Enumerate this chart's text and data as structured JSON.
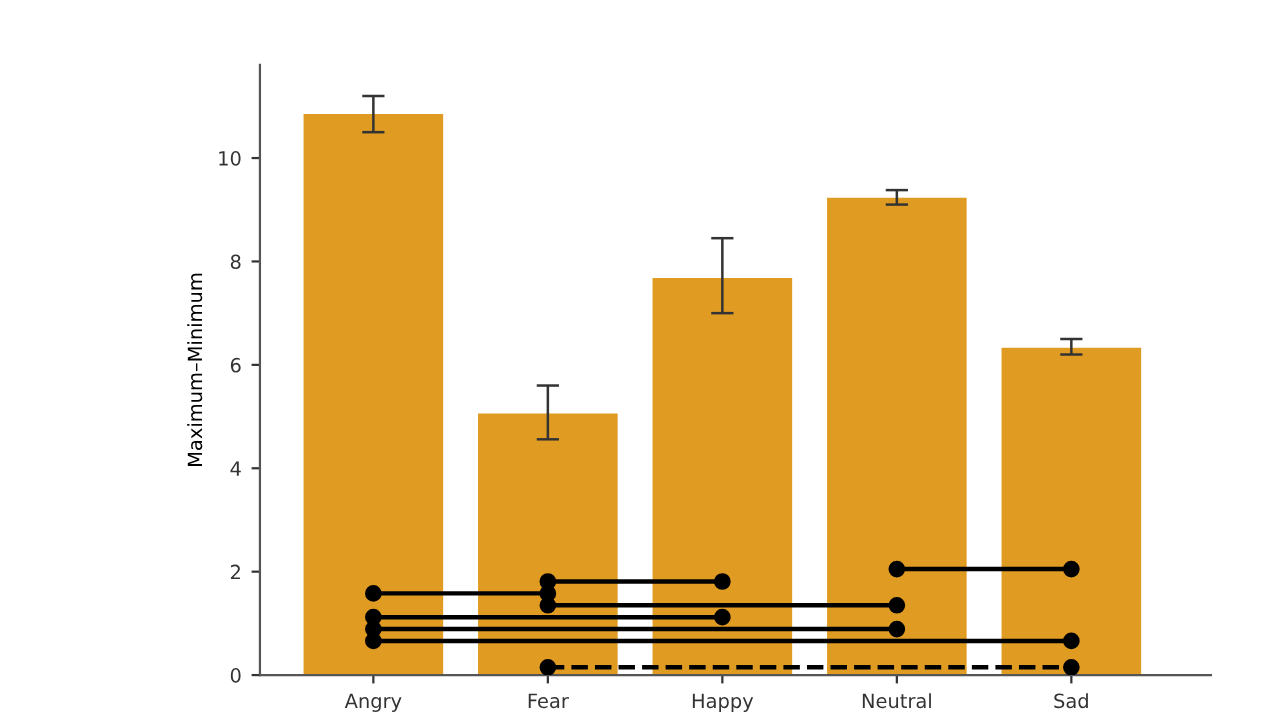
{
  "chart_data": {
    "type": "bar",
    "ylabel": "Maximum–Minimum",
    "categories": [
      "Angry",
      "Fear",
      "Happy",
      "Neutral",
      "Sad"
    ],
    "ylim": [
      0,
      11.8
    ],
    "yticks": [
      0,
      2,
      4,
      6,
      8,
      10
    ],
    "grid": false,
    "legend": false,
    "series": [
      {
        "color": "#e09b22",
        "values": [
          10.85,
          5.06,
          7.68,
          9.23,
          6.33
        ],
        "errors": [
          [
            10.5,
            11.2
          ],
          [
            4.56,
            5.6
          ],
          [
            7.0,
            8.45
          ],
          [
            9.1,
            9.38
          ],
          [
            6.2,
            6.5
          ]
        ]
      },
      {
        "type": "line",
        "color": "#000000",
        "marker": "circle",
        "line_style": "solid",
        "x": [
          "Neutral",
          "Sad"
        ],
        "values": [
          2.05,
          2.05
        ]
      },
      {
        "type": "line",
        "color": "#000000",
        "marker": "circle",
        "line_style": "solid",
        "x": [
          "Fear",
          "Happy"
        ],
        "values": [
          1.81,
          1.81
        ]
      },
      {
        "type": "line",
        "color": "#000000",
        "marker": "circle",
        "line_style": "solid",
        "x": [
          "Angry",
          "Fear"
        ],
        "values": [
          1.58,
          1.58
        ]
      },
      {
        "type": "line",
        "color": "#000000",
        "marker": "circle",
        "line_style": "solid",
        "x": [
          "Fear",
          "Neutral"
        ],
        "values": [
          1.35,
          1.35
        ]
      },
      {
        "type": "line",
        "color": "#000000",
        "marker": "circle",
        "line_style": "solid",
        "x": [
          "Angry",
          "Happy"
        ],
        "values": [
          1.12,
          1.12
        ]
      },
      {
        "type": "line",
        "color": "#000000",
        "marker": "circle",
        "line_style": "solid",
        "x": [
          "Angry",
          "Neutral"
        ],
        "values": [
          0.89,
          0.89
        ]
      },
      {
        "type": "line",
        "color": "#000000",
        "marker": "circle",
        "line_style": "solid",
        "x": [
          "Angry",
          "Sad"
        ],
        "values": [
          0.66,
          0.66
        ]
      },
      {
        "type": "line",
        "color": "#000000",
        "marker": "circle",
        "line_style": "dashed",
        "x": [
          "Fear",
          "Sad"
        ],
        "values": [
          0.15,
          0.15
        ]
      }
    ]
  }
}
